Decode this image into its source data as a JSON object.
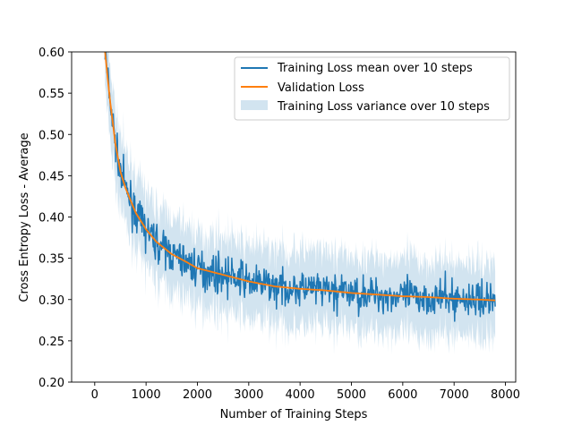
{
  "chart_data": {
    "type": "line",
    "title": "",
    "xlabel": "Number of Training Steps",
    "ylabel": "Cross Entropy Loss - Average",
    "xlim": [
      -450,
      8200
    ],
    "ylim": [
      0.2,
      0.6
    ],
    "x_ticks": [
      0,
      1000,
      2000,
      3000,
      4000,
      5000,
      6000,
      7000,
      8000
    ],
    "y_ticks": [
      0.2,
      0.25,
      0.3,
      0.35,
      0.4,
      0.45,
      0.5,
      0.55,
      0.6
    ],
    "grid": false,
    "legend_position": "top-right",
    "colors": {
      "train": "#1f77b4",
      "val": "#ff7f0e",
      "band": "#1f77b4"
    },
    "series": [
      {
        "name": "Training Loss mean over 10 steps",
        "kind": "line",
        "color": "#1f77b4",
        "x_range": [
          200,
          7800
        ],
        "noise": 0.015,
        "seed": 7
      },
      {
        "name": "Validation Loss",
        "kind": "line",
        "color": "#ff7f0e",
        "x": [
          200,
          300,
          400,
          500,
          600,
          700,
          800,
          1000,
          1200,
          1500,
          1800,
          2000,
          2500,
          3000,
          3500,
          4000,
          4500,
          5000,
          5500,
          6000,
          6500,
          7000,
          7500,
          7800
        ],
        "y": [
          0.6,
          0.54,
          0.49,
          0.455,
          0.435,
          0.42,
          0.405,
          0.385,
          0.37,
          0.355,
          0.345,
          0.338,
          0.33,
          0.322,
          0.316,
          0.313,
          0.311,
          0.308,
          0.306,
          0.304,
          0.303,
          0.301,
          0.3,
          0.299
        ]
      },
      {
        "name": "Training Loss variance over 10 steps",
        "kind": "band",
        "color": "#1f77b4",
        "alpha": 0.2,
        "spread": 0.045
      }
    ]
  }
}
